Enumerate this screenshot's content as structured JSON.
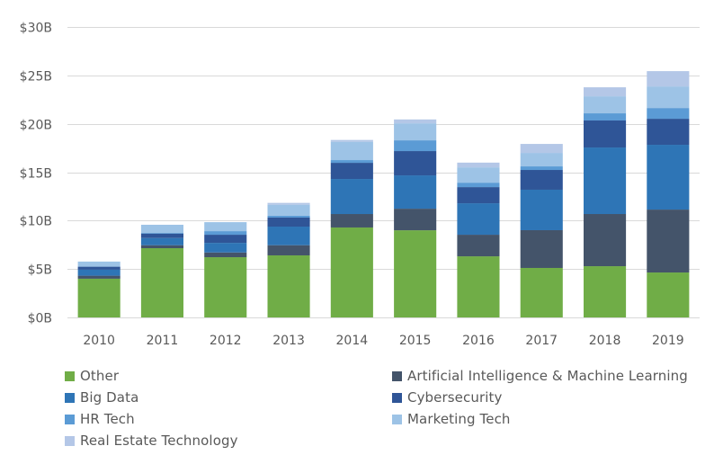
{
  "chart_data": {
    "type": "bar",
    "stacked": true,
    "title": "",
    "xlabel": "",
    "ylabel": "",
    "ylim": [
      0,
      30
    ],
    "yticks": [
      0,
      5,
      10,
      15,
      20,
      25,
      30
    ],
    "ytick_labels": [
      "$0B",
      "$5B",
      "$10B",
      "$15B",
      "$20B",
      "$25B",
      "$30B"
    ],
    "grid": true,
    "legend_position": "bottom",
    "categories": [
      "2010",
      "2011",
      "2012",
      "2013",
      "2014",
      "2015",
      "2016",
      "2017",
      "2018",
      "2019"
    ],
    "series": [
      {
        "name": "Other",
        "color": "#70AD47",
        "values": [
          4.0,
          7.15,
          6.22,
          6.41,
          9.29,
          9.0,
          6.31,
          5.11,
          5.29,
          4.64
        ]
      },
      {
        "name": "Artificial Intelligence & Machine Learning",
        "color": "#44546A",
        "values": [
          0.31,
          0.31,
          0.49,
          1.05,
          1.39,
          2.23,
          2.23,
          3.9,
          5.39,
          6.5
        ]
      },
      {
        "name": "Big Data",
        "color": "#2E75B6",
        "values": [
          0.62,
          0.74,
          0.99,
          1.92,
          3.62,
          3.44,
          3.25,
          4.18,
          6.87,
          6.69
        ]
      },
      {
        "name": "Cybersecurity",
        "color": "#2F5597",
        "values": [
          0.31,
          0.46,
          0.84,
          0.93,
          1.67,
          2.51,
          1.67,
          2.04,
          2.79,
          2.69
        ]
      },
      {
        "name": "HR Tech",
        "color": "#5B9BD5",
        "values": [
          0.0,
          0.07,
          0.37,
          0.19,
          0.28,
          1.11,
          0.46,
          0.37,
          0.74,
          1.11
        ]
      },
      {
        "name": "Marketing Tech",
        "color": "#9DC3E6",
        "values": [
          0.53,
          0.84,
          0.93,
          1.14,
          1.89,
          1.76,
          1.58,
          1.39,
          1.76,
          2.23
        ]
      },
      {
        "name": "Real Estate Technology",
        "color": "#B4C7E7",
        "values": [
          0.0,
          0.0,
          0.0,
          0.19,
          0.19,
          0.4,
          0.49,
          0.93,
          0.93,
          1.58
        ]
      }
    ]
  },
  "legend": {
    "items": [
      {
        "label": "Other",
        "color": "#70AD47"
      },
      {
        "label": "Artificial Intelligence & Machine Learning",
        "color": "#44546A"
      },
      {
        "label": "Big Data",
        "color": "#2E75B6"
      },
      {
        "label": "Cybersecurity",
        "color": "#2F5597"
      },
      {
        "label": "HR Tech",
        "color": "#5B9BD5"
      },
      {
        "label": "Marketing Tech",
        "color": "#9DC3E6"
      },
      {
        "label": "Real Estate Technology",
        "color": "#B4C7E7"
      }
    ]
  }
}
